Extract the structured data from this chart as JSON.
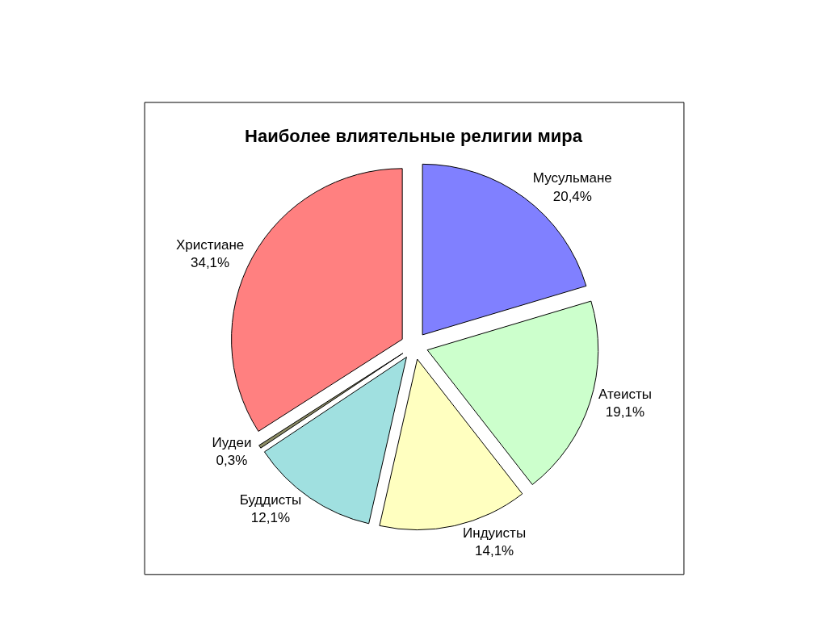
{
  "chart_data": {
    "type": "pie",
    "title": "Наиболее влиятельные религии мира",
    "categories": [
      "Мусульмане",
      "Атеисты",
      "Индуисты",
      "Буддисты",
      "Иудеи",
      "Христиане"
    ],
    "values": [
      20.4,
      19.1,
      14.1,
      12.1,
      0.3,
      34.1
    ],
    "value_labels": [
      "20,4%",
      "19,1%",
      "14,1%",
      "12,1%",
      "0,3%",
      "34,1%"
    ],
    "colors": [
      "#8080ff",
      "#ccffcc",
      "#ffffc0",
      "#a0e0e0",
      "#8c8c64",
      "#ff8080"
    ],
    "legend": false
  }
}
